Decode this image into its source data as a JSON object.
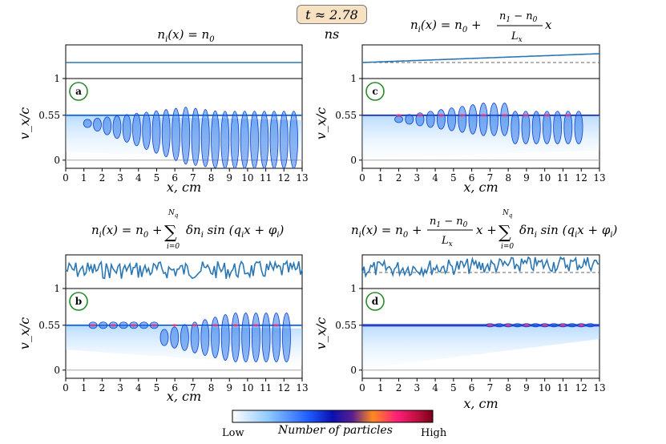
{
  "time_label": "t ≈ 2.78 ns",
  "colorbar": {
    "low_label": "Low",
    "high_label": "High",
    "title": "Number of particles",
    "colors": [
      "#ffffff",
      "#8fc9ff",
      "#1f5cff",
      "#0a0fb0",
      "#5a1f8f",
      "#ff8a1f",
      "#ff1f7a",
      "#c01040",
      "#7a0018"
    ]
  },
  "colors": {
    "density_line": "#2b77b4",
    "phase_blue": "#1f6fe6",
    "phase_light": "#bfe0ff",
    "ref_line": "#b0b0b0",
    "panel_label_ring": "#2a8a2a"
  },
  "chart_data": [
    {
      "id": "a",
      "type": "scatter",
      "title": "n_i(x) = n_0",
      "density_profile": "uniform",
      "xlabel": "x, cm",
      "ylabel": "v_x/c",
      "xlim": [
        0,
        13
      ],
      "x_ticks": [
        "0",
        "1",
        "2",
        "3",
        "4",
        "5",
        "6",
        "7",
        "8",
        "9",
        "10",
        "11",
        "12",
        "13"
      ],
      "y_ticks": [
        "0",
        "0.55",
        "1"
      ],
      "beam_velocity": 0.55,
      "panel_label": "a"
    },
    {
      "id": "c",
      "type": "scatter",
      "title": "n_i(x) = n_0 + (n_1 − n_0)/L_x · x",
      "density_profile": "linear",
      "xlabel": "x, cm",
      "ylabel": "v_x/c",
      "xlim": [
        0,
        13
      ],
      "x_ticks": [
        "0",
        "1",
        "2",
        "3",
        "4",
        "5",
        "6",
        "7",
        "8",
        "9",
        "10",
        "11",
        "12",
        "13"
      ],
      "y_ticks": [
        "0",
        "0.55",
        "1"
      ],
      "beam_velocity": 0.55,
      "panel_label": "c"
    },
    {
      "id": "b",
      "type": "scatter",
      "title": "n_i(x) = n_0 + Σ_{i=0}^{N_q} δn_i sin(q_i x + φ_i)",
      "density_profile": "perturbed",
      "xlabel": "x, cm",
      "ylabel": "v_x/c",
      "xlim": [
        0,
        13
      ],
      "x_ticks": [
        "0",
        "1",
        "2",
        "3",
        "4",
        "5",
        "6",
        "7",
        "8",
        "9",
        "10",
        "11",
        "12",
        "13"
      ],
      "y_ticks": [
        "0",
        "0.55",
        "1"
      ],
      "beam_velocity": 0.55,
      "panel_label": "b"
    },
    {
      "id": "d",
      "type": "scatter",
      "title": "n_i(x) = n_0 + (n_1 − n_0)/L_x · x + Σ_{i=0}^{N_q} δn_i sin(q_i x + φ_i)",
      "density_profile": "linear_perturbed",
      "xlabel": "x, cm",
      "ylabel": "v_x/c",
      "xlim": [
        0,
        13
      ],
      "x_ticks": [
        "0",
        "1",
        "2",
        "3",
        "4",
        "5",
        "6",
        "7",
        "8",
        "9",
        "10",
        "11",
        "12",
        "13"
      ],
      "y_ticks": [
        "0",
        "0.55",
        "1"
      ],
      "beam_velocity": 0.55,
      "panel_label": "d"
    }
  ]
}
